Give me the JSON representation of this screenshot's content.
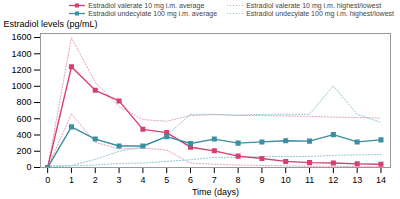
{
  "chart_data": {
    "type": "line",
    "xlabel": "Time (days)",
    "ylabel": "Estradiol levels (pg/mL)",
    "x": [
      0,
      1,
      2,
      3,
      4,
      5,
      6,
      7,
      8,
      9,
      10,
      11,
      12,
      13,
      14
    ],
    "xlim": [
      -0.3,
      14.4
    ],
    "xticks": [
      0,
      1,
      2,
      3,
      4,
      5,
      6,
      7,
      8,
      9,
      10,
      11,
      12,
      13,
      14
    ],
    "ylim": [
      0,
      1650
    ],
    "yticks": [
      0,
      200,
      400,
      600,
      800,
      1000,
      1200,
      1400,
      1600
    ],
    "grid": false,
    "legend": "upper right",
    "series": [
      {
        "name": "Estradiol valerate 10 mg i.m. average",
        "color": "#d44070",
        "marker": "square",
        "line_style": "solid",
        "values": [
          0,
          1240,
          950,
          820,
          470,
          430,
          250,
          205,
          140,
          110,
          75,
          60,
          55,
          45,
          40
        ]
      },
      {
        "name": "Estradiol valerate 10 mg i.m. highest/lowest",
        "color": "#e0a0be",
        "line_style": "dotted",
        "values": [
          0,
          1600,
          1050,
          750,
          590,
          570,
          640,
          650,
          640,
          640,
          635,
          630,
          620,
          615,
          610
        ]
      },
      {
        "name": "Estradiol valerate 10 mg i.m. highest/lowest",
        "color": "#e0a0be",
        "line_style": "dotted",
        "values": [
          0,
          660,
          310,
          230,
          240,
          215,
          55,
          40,
          30,
          25,
          20,
          15,
          15,
          10,
          10
        ]
      },
      {
        "name": "Estradiol undecylate 100 mg i.m. average",
        "color": "#3a8fa0",
        "marker": "square",
        "line_style": "solid",
        "values": [
          0,
          500,
          350,
          265,
          265,
          380,
          295,
          350,
          300,
          315,
          330,
          325,
          405,
          315,
          340
        ]
      },
      {
        "name": "Estradiol undecylate 100 mg i.m. highest/lowest",
        "color": "#90c8d8",
        "line_style": "dotted",
        "values": [
          20,
          25,
          100,
          200,
          250,
          395,
          655,
          655,
          645,
          655,
          655,
          655,
          1005,
          655,
          555
        ]
      },
      {
        "name": "Estradiol undecylate 100 mg i.m. highest/lowest",
        "color": "#90c8d8",
        "line_style": "dotted",
        "values": [
          5,
          20,
          30,
          50,
          55,
          75,
          95,
          125,
          125,
          135,
          135,
          135,
          150,
          155,
          160
        ]
      }
    ]
  }
}
